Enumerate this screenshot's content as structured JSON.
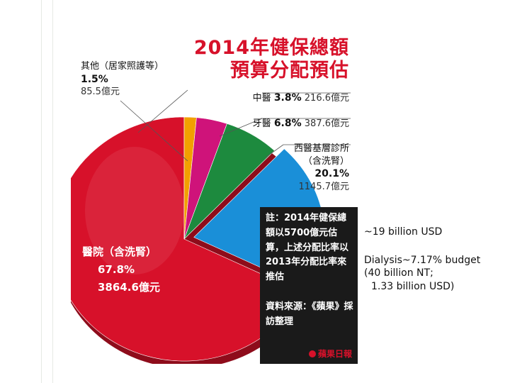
{
  "chart_data": {
    "type": "pie",
    "title": "2014年健保總額",
    "subtitle": "預算分配預估",
    "slices": [
      {
        "name": "醫院",
        "name_detail": "（含洗腎）",
        "percent": 67.8,
        "percent_label": "67.8%",
        "amount_label": "3864.6億元",
        "color": "#d7112a"
      },
      {
        "name": "其他",
        "name_detail": "（居家照護等）",
        "percent": 1.5,
        "percent_label": "1.5%",
        "amount_label": "85.5億元",
        "color": "#f2a000"
      },
      {
        "name": "中醫",
        "percent": 3.8,
        "percent_label": "3.8%",
        "amount_label": "216.6億元",
        "color": "#cf137a"
      },
      {
        "name": "牙醫",
        "percent": 6.8,
        "percent_label": "6.8%",
        "amount_label": "387.6億元",
        "color": "#1d8a3e"
      },
      {
        "name": "西醫基層診所",
        "name_detail": "（含洗腎）",
        "percent": 20.1,
        "percent_label": "20.1%",
        "amount_label": "1145.7億元",
        "color": "#1a8fd8"
      }
    ],
    "note": "註：2014年健保總額以5700億元估算，上述分配比率以2013年分配比率來推估",
    "source": "資料來源：《蘋果》採訪整理",
    "logo": "蘋果日報"
  },
  "side_notes": {
    "usd": "~19 billion USD",
    "dialysis_line1": "Dialysis~7.17% budget",
    "dialysis_line2": "(40 billion NT;",
    "dialysis_line3": "1.33 billion USD)"
  }
}
